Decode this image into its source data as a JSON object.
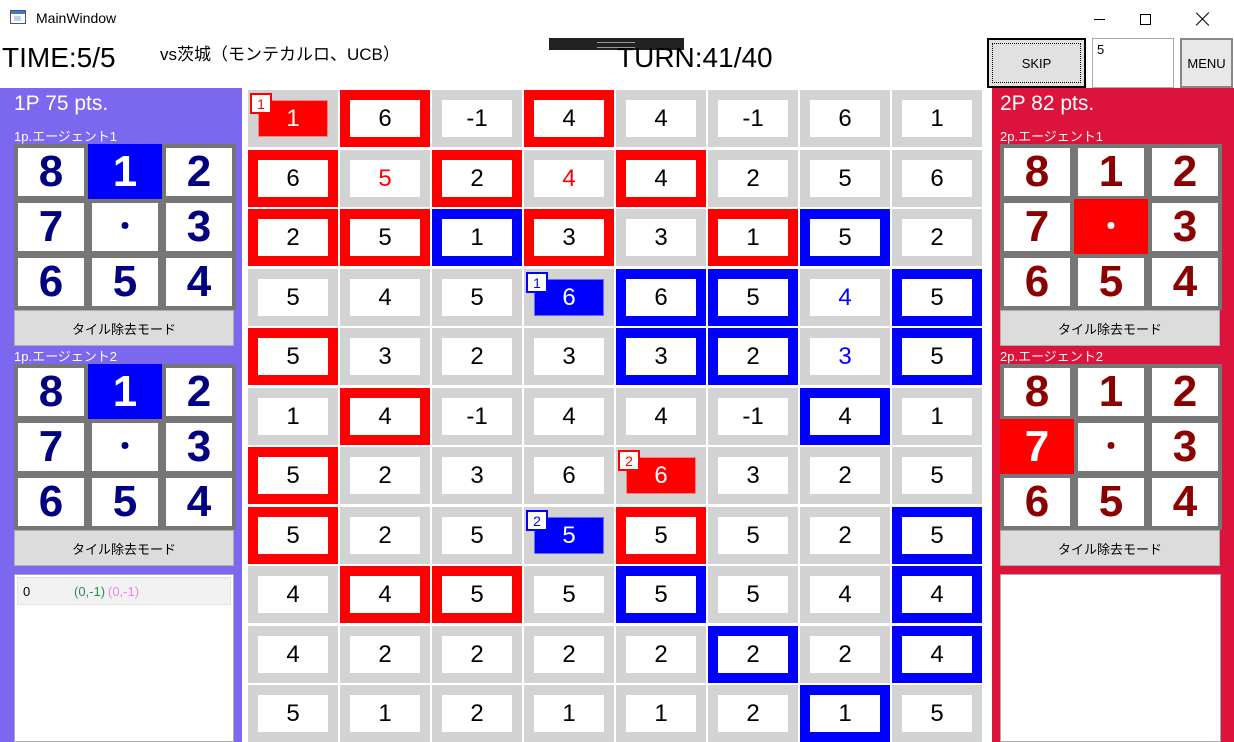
{
  "window": {
    "title": "MainWindow"
  },
  "header": {
    "time": "TIME:5/5",
    "opponent": "vs茨城（モンテカルロ、UCB）",
    "turn": "TURN:41/40",
    "skip_label": "SKIP",
    "skip_value": "5",
    "menu_label": "MENU"
  },
  "players": {
    "p1": {
      "score": "1P  75 pts.",
      "color": "#7b68ee",
      "remove_label": "タイル除去モード",
      "agents": [
        {
          "label": "1p.エージェント1",
          "dirs": [
            "8",
            "1",
            "2",
            "7",
            "・",
            "3",
            "6",
            "5",
            "4"
          ],
          "selected": 1
        },
        {
          "label": "1p.エージェント2",
          "dirs": [
            "8",
            "1",
            "2",
            "7",
            "・",
            "3",
            "6",
            "5",
            "4"
          ],
          "selected": 1
        }
      ],
      "log": [
        {
          "index": "0",
          "move_a": "(0,-1)",
          "move_b": "(0,-1)"
        }
      ]
    },
    "p2": {
      "score": "2P  82 pts.",
      "color": "#dc143c",
      "remove_label": "タイル除去モード",
      "agents": [
        {
          "label": "2p.エージェント1",
          "dirs": [
            "8",
            "1",
            "2",
            "7",
            "・",
            "3",
            "6",
            "5",
            "4"
          ],
          "selected": 4
        },
        {
          "label": "2p.エージェント2",
          "dirs": [
            "8",
            "1",
            "2",
            "7",
            "・",
            "3",
            "6",
            "5",
            "4"
          ],
          "selected": 3
        }
      ]
    }
  },
  "board": {
    "cols": 8,
    "rows": 11,
    "values": [
      [
        "1",
        "6",
        "-1",
        "4",
        "4",
        "-1",
        "6",
        "1"
      ],
      [
        "6",
        "5",
        "2",
        "4",
        "4",
        "2",
        "5",
        "6"
      ],
      [
        "2",
        "5",
        "1",
        "3",
        "3",
        "1",
        "5",
        "2"
      ],
      [
        "5",
        "4",
        "5",
        "6",
        "6",
        "5",
        "4",
        "5"
      ],
      [
        "5",
        "3",
        "2",
        "3",
        "3",
        "2",
        "3",
        "5"
      ],
      [
        "1",
        "4",
        "-1",
        "4",
        "4",
        "-1",
        "4",
        "1"
      ],
      [
        "5",
        "2",
        "3",
        "6",
        "6",
        "3",
        "2",
        "5"
      ],
      [
        "5",
        "2",
        "5",
        "5",
        "5",
        "5",
        "2",
        "5"
      ],
      [
        "4",
        "4",
        "5",
        "5",
        "5",
        "5",
        "4",
        "4"
      ],
      [
        "4",
        "2",
        "2",
        "2",
        "2",
        "2",
        "2",
        "4"
      ],
      [
        "5",
        "1",
        "2",
        "1",
        "1",
        "2",
        "1",
        "5"
      ]
    ],
    "owners": [
      [
        "R",
        "R",
        "",
        "R",
        "",
        "",
        "",
        ""
      ],
      [
        "R",
        "",
        "R",
        "",
        "R",
        "",
        "",
        ""
      ],
      [
        "R",
        "R",
        "B",
        "R",
        "",
        "R",
        "B",
        ""
      ],
      [
        "",
        "",
        "",
        "B",
        "B",
        "B",
        "",
        "B"
      ],
      [
        "R",
        "",
        "",
        "",
        "B",
        "B",
        "",
        "B"
      ],
      [
        "",
        "R",
        "",
        "",
        "",
        "",
        "B",
        ""
      ],
      [
        "R",
        "",
        "",
        "",
        "R",
        "",
        "",
        ""
      ],
      [
        "R",
        "",
        "",
        "B",
        "R",
        "",
        "",
        "B"
      ],
      [
        "",
        "R",
        "R",
        "",
        "B",
        "",
        "",
        "B"
      ],
      [
        "",
        "",
        "",
        "",
        "",
        "B",
        "",
        "B"
      ],
      [
        "",
        "",
        "",
        "",
        "",
        "",
        "B",
        ""
      ]
    ],
    "text_colors": [
      [
        "",
        "",
        "",
        "",
        "",
        "",
        "",
        ""
      ],
      [
        "",
        "red",
        "",
        "red",
        "",
        "",
        "",
        ""
      ],
      [
        "",
        "",
        "",
        "",
        "",
        "",
        "",
        ""
      ],
      [
        "",
        "",
        "",
        "",
        "",
        "",
        "blue",
        ""
      ],
      [
        "",
        "",
        "",
        "",
        "",
        "",
        "blue",
        ""
      ],
      [
        "",
        "",
        "",
        "",
        "",
        "",
        "",
        ""
      ],
      [
        "",
        "",
        "",
        "",
        "",
        "",
        "",
        ""
      ],
      [
        "",
        "",
        "",
        "",
        "",
        "",
        "",
        ""
      ],
      [
        "",
        "",
        "",
        "",
        "",
        "",
        "",
        ""
      ],
      [
        "",
        "",
        "",
        "",
        "",
        "",
        "",
        ""
      ],
      [
        "",
        "",
        "",
        "",
        "",
        "",
        "",
        ""
      ]
    ],
    "agents": [
      {
        "team": "red",
        "label": "1",
        "row": 0,
        "col": 0
      },
      {
        "team": "blue",
        "label": "1",
        "row": 3,
        "col": 3
      },
      {
        "team": "red",
        "label": "2",
        "row": 6,
        "col": 4
      },
      {
        "team": "blue",
        "label": "2",
        "row": 7,
        "col": 3
      }
    ]
  }
}
